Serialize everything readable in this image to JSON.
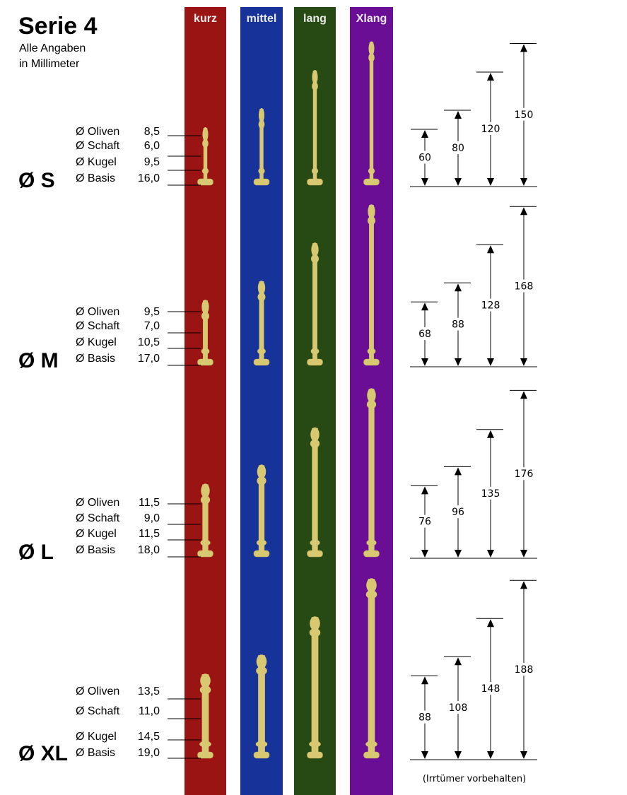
{
  "title": "Serie 4",
  "subtitle_lines": [
    "Alle Angaben",
    "in Millimeter"
  ],
  "columns": [
    {
      "label": "kurz",
      "color": "#9b1414"
    },
    {
      "label": "mittel",
      "color": "#17339a"
    },
    {
      "label": "lang",
      "color": "#274a14"
    },
    {
      "label": "Xlang",
      "color": "#6a0e96"
    }
  ],
  "rod_color": "#d8c872",
  "sizes": [
    {
      "label": "Ø S",
      "specs": [
        {
          "name": "Ø Oliven",
          "value": "8,5"
        },
        {
          "name": "Ø Schaft",
          "value": "6,0"
        },
        {
          "name": "Ø Kugel",
          "value": "9,5"
        },
        {
          "name": "Ø Basis",
          "value": "16,0"
        }
      ],
      "lengths": [
        60,
        80,
        120,
        150
      ]
    },
    {
      "label": "Ø M",
      "specs": [
        {
          "name": "Ø Oliven",
          "value": "9,5"
        },
        {
          "name": "Ø Schaft",
          "value": "7,0"
        },
        {
          "name": "Ø Kugel",
          "value": "10,5"
        },
        {
          "name": "Ø Basis",
          "value": "17,0"
        }
      ],
      "lengths": [
        68,
        88,
        128,
        168
      ]
    },
    {
      "label": "Ø L",
      "specs": [
        {
          "name": "Ø Oliven",
          "value": "11,5"
        },
        {
          "name": "Ø Schaft",
          "value": "9,0"
        },
        {
          "name": "Ø Kugel",
          "value": "11,5"
        },
        {
          "name": "Ø Basis",
          "value": "18,0"
        }
      ],
      "lengths": [
        76,
        96,
        135,
        176
      ]
    },
    {
      "label": "Ø XL",
      "specs": [
        {
          "name": "Ø Oliven",
          "value": "13,5"
        },
        {
          "name": "Ø Schaft",
          "value": "11,0"
        },
        {
          "name": "Ø Kugel",
          "value": "14,5"
        },
        {
          "name": "Ø Basis",
          "value": "19,0"
        }
      ],
      "lengths": [
        88,
        108,
        148,
        188
      ]
    }
  ],
  "footnote": "(Irrtümer vorbehalten)"
}
